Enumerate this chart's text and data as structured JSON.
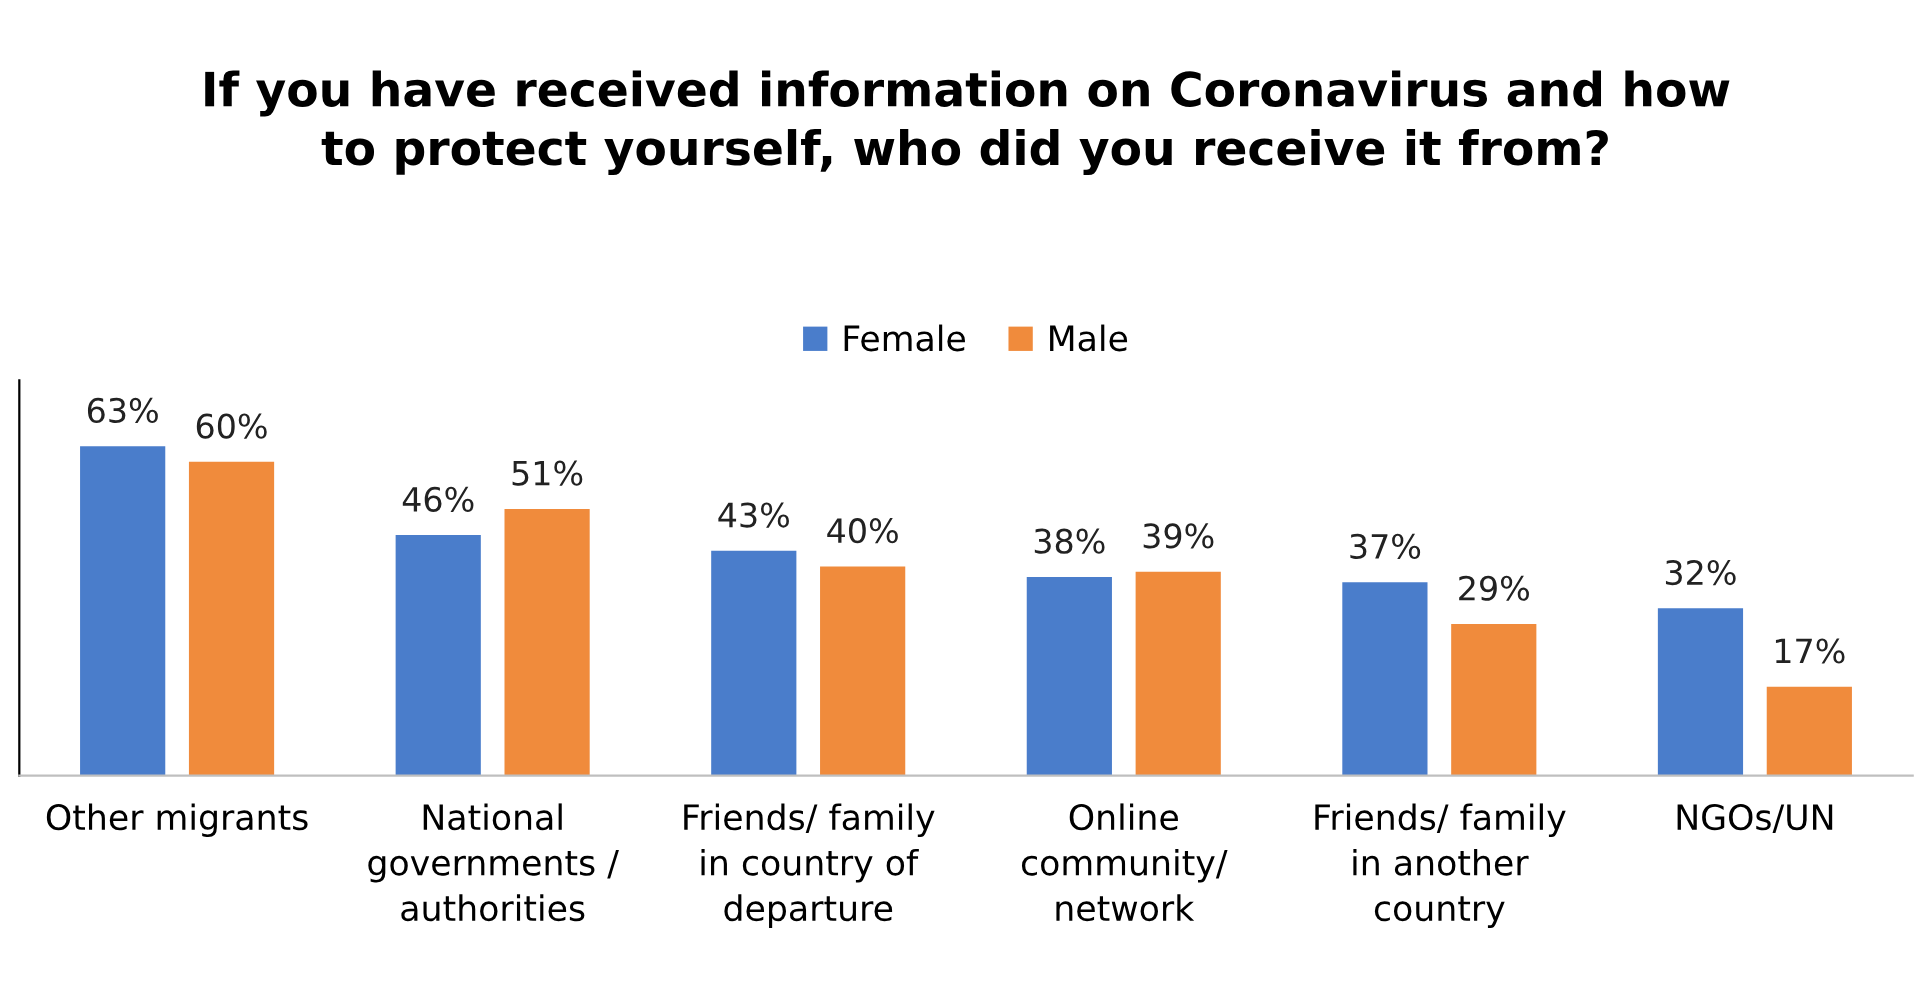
{
  "chart_data": {
    "type": "bar",
    "title": "If you have received information on Coronavirus and how\nto protect yourself, who did you receive it from?",
    "categories": [
      "Other migrants",
      "National\ngovernments /\nauthorities",
      "Friends/ family\nin country of\ndeparture",
      "Online\ncommunity/\nnetwork",
      "Friends/ family\nin another\ncountry",
      "NGOs/UN"
    ],
    "series": [
      {
        "name": "Female",
        "color": "#4a7dcb",
        "values": [
          63,
          46,
          43,
          38,
          37,
          32
        ],
        "value_labels": [
          "63%",
          "46%",
          "43%",
          "38%",
          "37%",
          "32%"
        ]
      },
      {
        "name": "Male",
        "color": "#f08b3c",
        "values": [
          60,
          51,
          40,
          39,
          29,
          17
        ],
        "value_labels": [
          "60%",
          "51%",
          "40%",
          "39%",
          "29%",
          "17%"
        ]
      }
    ],
    "legend": "top",
    "grid": false
  }
}
